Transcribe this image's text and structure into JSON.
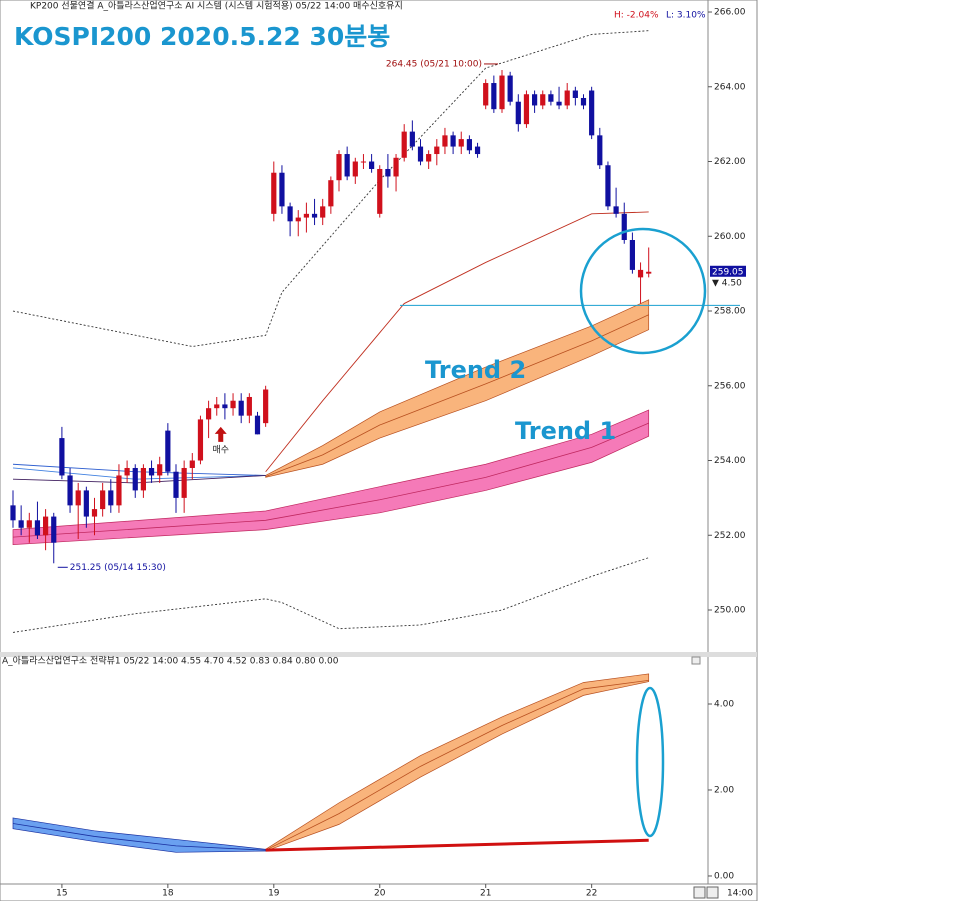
{
  "chart_data": [
    {
      "type": "candlestick",
      "header": "KP200 선물연결  A_아틀라스산업연구소 AI 시스템 (시스템 시험적용) 05/22 14:00 매수신호유지",
      "title": "KOSPI200 2020.5.22 30분봉",
      "hl": [
        "H: -2.04%",
        "L: 3.10%"
      ],
      "categories": [
        null,
        null,
        null,
        null,
        null,
        null,
        "15",
        null,
        null,
        null,
        null,
        null,
        null,
        null,
        null,
        null,
        null,
        null,
        null,
        "18",
        null,
        null,
        null,
        null,
        null,
        null,
        null,
        null,
        null,
        null,
        null,
        null,
        "19",
        null,
        null,
        null,
        null,
        null,
        null,
        null,
        null,
        null,
        null,
        null,
        null,
        "20",
        null,
        null,
        null,
        null,
        null,
        null,
        null,
        null,
        null,
        null,
        null,
        null,
        "21",
        null,
        null,
        null,
        null,
        null,
        null,
        null,
        null,
        null,
        null,
        null,
        null,
        "22",
        null,
        null,
        null,
        null,
        null,
        null,
        null
      ],
      "open": [
        252.8,
        252.4,
        252.2,
        252.4,
        252.0,
        252.5,
        254.6,
        253.6,
        252.8,
        253.2,
        252.5,
        252.7,
        253.2,
        252.8,
        253.6,
        253.8,
        253.2,
        253.8,
        253.6,
        254.8,
        253.7,
        253.0,
        253.8,
        254.0,
        255.1,
        255.4,
        255.5,
        255.4,
        255.6,
        255.2,
        255.2,
        255.0,
        260.6,
        261.7,
        260.8,
        260.4,
        260.5,
        260.6,
        260.5,
        260.8,
        261.5,
        262.2,
        261.6,
        262.0,
        262.0,
        260.6,
        261.8,
        261.6,
        262.1,
        262.8,
        262.4,
        262.0,
        262.2,
        262.4,
        262.7,
        262.4,
        262.6,
        262.4,
        263.5,
        264.1,
        263.4,
        264.3,
        263.6,
        263.0,
        263.8,
        263.5,
        263.8,
        263.6,
        263.5,
        263.9,
        263.7,
        263.9,
        262.7,
        261.9,
        260.8,
        260.6,
        259.9,
        258.9,
        259.0
      ],
      "high": [
        253.2,
        252.8,
        252.6,
        252.9,
        252.7,
        252.6,
        254.9,
        253.8,
        253.4,
        253.3,
        253.0,
        253.4,
        253.5,
        253.9,
        254.0,
        253.9,
        253.9,
        254.0,
        254.1,
        255.0,
        253.9,
        254.0,
        254.2,
        255.2,
        255.6,
        255.7,
        255.8,
        255.8,
        255.8,
        255.8,
        255.3,
        256.0,
        262.0,
        261.9,
        260.9,
        260.7,
        260.9,
        261.0,
        261.0,
        261.6,
        262.3,
        262.4,
        262.1,
        262.2,
        262.2,
        261.9,
        262.2,
        262.2,
        263.0,
        263.1,
        262.6,
        262.3,
        262.6,
        262.9,
        262.8,
        262.8,
        262.7,
        262.5,
        264.2,
        264.3,
        264.45,
        264.4,
        263.8,
        263.9,
        263.9,
        263.9,
        263.9,
        264.0,
        264.1,
        264.0,
        263.8,
        264.0,
        262.9,
        262.0,
        261.3,
        260.9,
        260.1,
        259.3,
        259.7
      ],
      "low": [
        252.2,
        252.0,
        251.8,
        251.9,
        251.6,
        251.25,
        253.5,
        252.6,
        251.9,
        252.2,
        252.0,
        252.5,
        252.6,
        252.6,
        253.4,
        253.0,
        253.0,
        253.4,
        253.4,
        253.6,
        252.6,
        252.6,
        253.5,
        253.9,
        254.6,
        255.2,
        255.1,
        255.2,
        255.0,
        255.0,
        254.7,
        254.9,
        260.4,
        260.6,
        260.0,
        260.0,
        260.1,
        260.3,
        260.3,
        260.6,
        261.2,
        261.5,
        261.4,
        261.8,
        261.7,
        260.5,
        261.3,
        261.2,
        262.0,
        262.3,
        261.9,
        261.8,
        261.9,
        262.2,
        262.2,
        262.2,
        262.2,
        262.1,
        263.4,
        263.3,
        263.3,
        263.5,
        262.8,
        262.9,
        263.3,
        263.4,
        263.5,
        263.4,
        263.4,
        263.5,
        263.4,
        262.6,
        261.8,
        260.7,
        260.5,
        259.8,
        259.0,
        258.2,
        258.9
      ],
      "close": [
        252.4,
        252.2,
        252.4,
        252.0,
        252.5,
        251.8,
        253.6,
        252.8,
        253.2,
        252.5,
        252.7,
        253.2,
        252.8,
        253.6,
        253.8,
        253.2,
        253.8,
        253.6,
        253.9,
        253.7,
        253.0,
        253.8,
        254.0,
        255.1,
        255.4,
        255.5,
        255.4,
        255.6,
        255.2,
        255.7,
        254.7,
        255.9,
        261.7,
        260.8,
        260.4,
        260.5,
        260.6,
        260.5,
        260.8,
        261.5,
        262.2,
        261.6,
        262.0,
        262.0,
        261.8,
        261.8,
        261.6,
        262.1,
        262.8,
        262.4,
        262.0,
        262.2,
        262.4,
        262.7,
        262.4,
        262.6,
        262.3,
        262.2,
        264.1,
        263.4,
        264.3,
        263.6,
        263.0,
        263.8,
        263.5,
        263.8,
        263.6,
        263.5,
        263.9,
        263.7,
        263.5,
        262.7,
        261.9,
        260.8,
        260.6,
        259.9,
        259.1,
        259.1,
        259.05
      ],
      "up_color": "#d0101c",
      "down_color": "#1010a0",
      "ylim": [
        248.93,
        266.268
      ],
      "yticks": [
        {
          "value": 250,
          "label": "250.00"
        },
        {
          "value": 252,
          "label": "252.00"
        },
        {
          "value": 254,
          "label": "254.00"
        },
        {
          "value": 256,
          "label": "256.00"
        },
        {
          "value": 258,
          "label": "258.00"
        },
        {
          "value": 260,
          "label": "260.00"
        },
        {
          "value": 262,
          "label": "262.00"
        },
        {
          "value": 264,
          "label": "264.00"
        },
        {
          "value": 266,
          "label": "266.00"
        }
      ],
      "last": 259.05,
      "change": "▼ 4.50",
      "hline": 258.15,
      "annotations": [
        {
          "text": "264.45 (05/21 10:00)",
          "index": 60,
          "value": 264.45
        },
        {
          "text": "251.25 (05/14 15:30)",
          "index": 5,
          "value": 251.25
        }
      ],
      "signal": {
        "text": "매수",
        "index": 25,
        "value": 254.9
      },
      "bands": [
        {
          "name": "Trend 1",
          "x": [
            0,
            31,
            45,
            58,
            71,
            78
          ],
          "upper": [
            252.15,
            252.65,
            253.3,
            253.9,
            254.7,
            255.35
          ],
          "lower": [
            251.75,
            252.15,
            252.6,
            253.2,
            253.95,
            254.65
          ],
          "middle": [
            251.95,
            252.4,
            252.95,
            253.55,
            254.35,
            255.0
          ],
          "fill": "#f57ab8",
          "stroke": "#c02860"
        },
        {
          "name": "Trend 2",
          "x": [
            31,
            38,
            45,
            58,
            71,
            78
          ],
          "upper": [
            253.6,
            254.4,
            255.3,
            256.5,
            257.6,
            258.3
          ],
          "lower": [
            253.55,
            253.9,
            254.6,
            255.6,
            256.8,
            257.5
          ],
          "middle": [
            253.57,
            254.15,
            254.95,
            256.05,
            257.2,
            257.9
          ],
          "fill": "#f9b47c",
          "stroke": "#b85020"
        }
      ],
      "lines": [
        {
          "x": [
            31,
            38,
            48,
            58,
            71,
            78
          ],
          "values": [
            253.7,
            255.6,
            258.2,
            259.3,
            260.6,
            260.65
          ],
          "color": "#c03020",
          "dash": false
        },
        {
          "x": [
            0,
            22,
            31,
            33,
            45,
            58,
            71,
            78
          ],
          "values": [
            258.0,
            257.05,
            257.35,
            258.5,
            261.5,
            264.5,
            265.4,
            265.5
          ],
          "color": "#333333",
          "dash": true
        },
        {
          "x": [
            0,
            15,
            31,
            33,
            40,
            50,
            60,
            71,
            78
          ],
          "values": [
            249.4,
            249.9,
            250.3,
            250.2,
            249.5,
            249.6,
            250.0,
            250.9,
            251.4
          ],
          "color": "#333333",
          "dash": true
        },
        {
          "x": [
            0,
            15,
            31
          ],
          "values": [
            253.9,
            253.7,
            253.6
          ],
          "color": "#3060d0",
          "dash": false
        },
        {
          "x": [
            0,
            15,
            31
          ],
          "values": [
            253.8,
            253.5,
            253.6
          ],
          "color": "#4080e0",
          "dash": false
        },
        {
          "x": [
            0,
            15,
            31
          ],
          "values": [
            253.5,
            253.4,
            253.6
          ],
          "color": "#402060",
          "dash": false
        }
      ]
    },
    {
      "type": "band",
      "header": "A_아틀라스산업연구소 전략뷰1  05/22 14:00 4.55  4.70  4.52  0.83  0.84  0.80  0.00",
      "ylim": [
        -0.14,
        5.023
      ],
      "yticks": [
        {
          "value": 0,
          "label": "0.00"
        },
        {
          "value": 2,
          "label": "2.00"
        },
        {
          "value": 4,
          "label": "4.00"
        }
      ],
      "time_label": "14:00",
      "bands": [
        {
          "x": [
            31,
            40,
            50,
            60,
            70,
            78
          ],
          "upper": [
            0.62,
            1.7,
            2.8,
            3.7,
            4.5,
            4.7
          ],
          "lower": [
            0.58,
            1.2,
            2.3,
            3.3,
            4.2,
            4.52
          ],
          "middle": [
            0.6,
            1.45,
            2.55,
            3.5,
            4.35,
            4.55
          ],
          "fill": "#f9b47c",
          "stroke": "#b85020"
        },
        {
          "x": [
            0,
            10,
            20,
            31
          ],
          "upper": [
            1.35,
            1.05,
            0.85,
            0.62
          ],
          "lower": [
            1.1,
            0.8,
            0.55,
            0.58
          ],
          "middle": [
            1.22,
            0.92,
            0.7,
            0.6
          ],
          "fill": "#6aa0f0",
          "stroke": "#1a30a0"
        }
      ],
      "lines": [
        {
          "x": [
            31,
            78
          ],
          "values": [
            0.6,
            0.83
          ],
          "color": "#d01010",
          "dash": false
        }
      ]
    }
  ]
}
